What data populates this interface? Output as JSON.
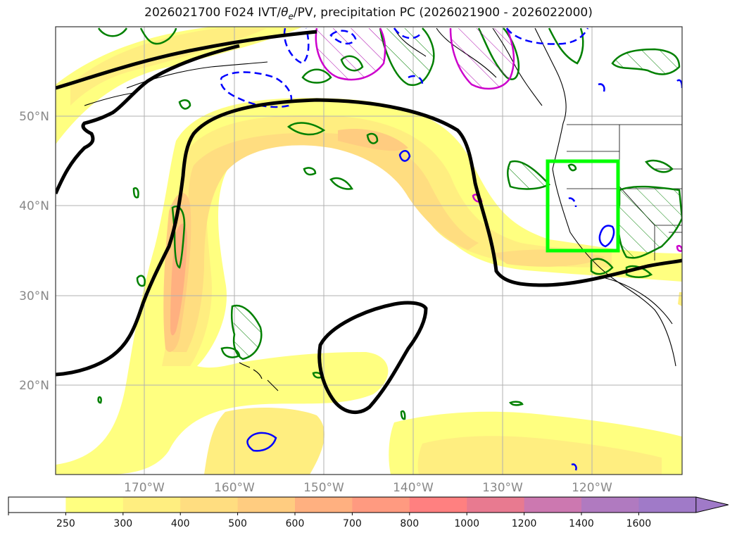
{
  "title": {
    "prefix": "2026021700 F024 IVT/",
    "theta": "θ",
    "theta_sub": "e",
    "suffix": "/PV, precipitation PC (2026021900 - 2026022000)"
  },
  "map": {
    "projection": "PlateCarree",
    "lon_range": [
      -180,
      -110
    ],
    "lat_range": [
      10,
      60
    ],
    "lat_labels": [
      {
        "value": 20,
        "text": "20°N"
      },
      {
        "value": 30,
        "text": "30°N"
      },
      {
        "value": 40,
        "text": "40°N"
      },
      {
        "value": 50,
        "text": "50°N"
      }
    ],
    "lon_labels": [
      {
        "value": -170,
        "text": "170°W"
      },
      {
        "value": -160,
        "text": "160°W"
      },
      {
        "value": -150,
        "text": "150°W"
      },
      {
        "value": -140,
        "text": "140°W"
      },
      {
        "value": -130,
        "text": "130°W"
      },
      {
        "value": -120,
        "text": "120°W"
      }
    ],
    "grid": true,
    "highlight_box": {
      "lon": [
        -125,
        -117
      ],
      "lat": [
        35,
        45
      ],
      "color": "#00ff00"
    }
  },
  "colorbar": {
    "levels": [
      "250",
      "300",
      "400",
      "500",
      "600",
      "700",
      "800",
      "1000",
      "1200",
      "1400",
      "1600"
    ],
    "colors": [
      "#ffffff",
      "#ffff80",
      "#ffee80",
      "#ffdd80",
      "#ffcc80",
      "#ffb080",
      "#ff9a80",
      "#ff8080",
      "#e87a90",
      "#cc78b0",
      "#b07ac0",
      "#a07ac8"
    ],
    "extend": "max"
  },
  "colors": {
    "ivt_contour_fill": "#ffdd80",
    "theta_contour": "#000000",
    "pv_positive": "#008000",
    "pv_negative": "#0000ff",
    "magenta": "#cc00cc"
  }
}
